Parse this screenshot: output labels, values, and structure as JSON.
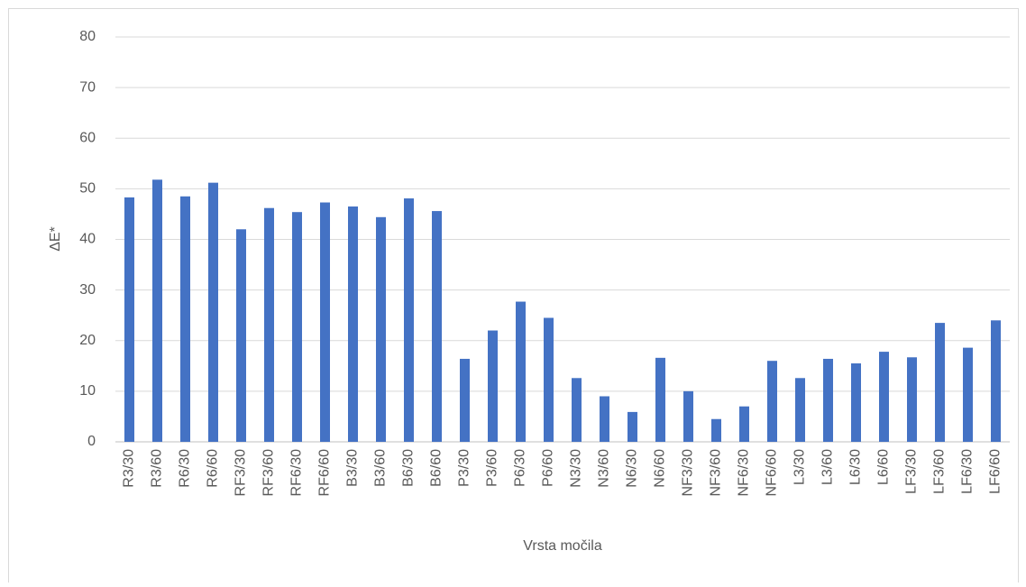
{
  "chart_data": {
    "type": "bar",
    "y_label": "ΔE*",
    "x_label": "Vrsta močila",
    "categories": [
      "R3/30",
      "R3/60",
      "R6/30",
      "R6/60",
      "RF3/30",
      "RF3/60",
      "RF6/30",
      "RF6/60",
      "B3/30",
      "B3/60",
      "B6/30",
      "B6/60",
      "P3/30",
      "P3/60",
      "P6/30",
      "P6/60",
      "N3/30",
      "N3/60",
      "N6/30",
      "N6/60",
      "NF3/30",
      "NF3/60",
      "NF6/30",
      "NF6/60",
      "L3/30",
      "L3/60",
      "L6/30",
      "L6/60",
      "LF3/30",
      "LF3/60",
      "LF6/30",
      "LF6/60"
    ],
    "values": [
      48.3,
      51.8,
      48.5,
      51.2,
      42,
      46.2,
      45.4,
      47.3,
      46.5,
      44.4,
      48.1,
      45.6,
      16.4,
      22,
      27.7,
      24.5,
      12.6,
      9,
      5.9,
      16.6,
      10,
      4.5,
      7,
      16,
      12.6,
      16.4,
      15.5,
      17.8,
      16.7,
      23.5,
      18.6,
      24
    ],
    "color": "#4472c4",
    "ylim": [
      0,
      80
    ],
    "yticks": [
      0,
      10,
      20,
      30,
      40,
      50,
      60,
      70,
      80
    ],
    "grid": true
  }
}
